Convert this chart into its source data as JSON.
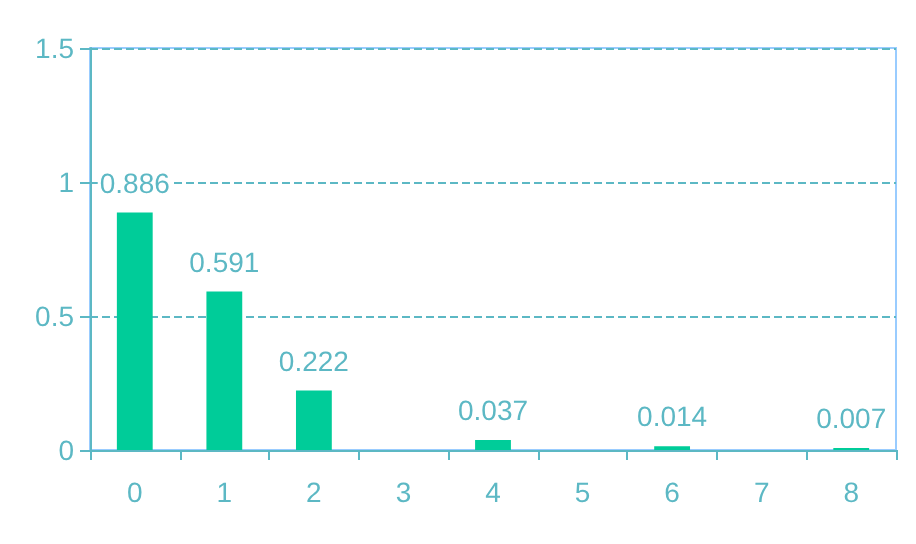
{
  "chart_data": {
    "type": "bar",
    "categories": [
      "0",
      "1",
      "2",
      "3",
      "4",
      "5",
      "6",
      "7",
      "8"
    ],
    "values": [
      0.886,
      0.591,
      0.222,
      null,
      0.037,
      null,
      0.014,
      null,
      0.007
    ],
    "color": "#00cc99",
    "ylim": [
      0,
      1.5
    ],
    "yticks": [
      0,
      0.5,
      1,
      1.5
    ],
    "grid": "y",
    "data_labels": true
  }
}
